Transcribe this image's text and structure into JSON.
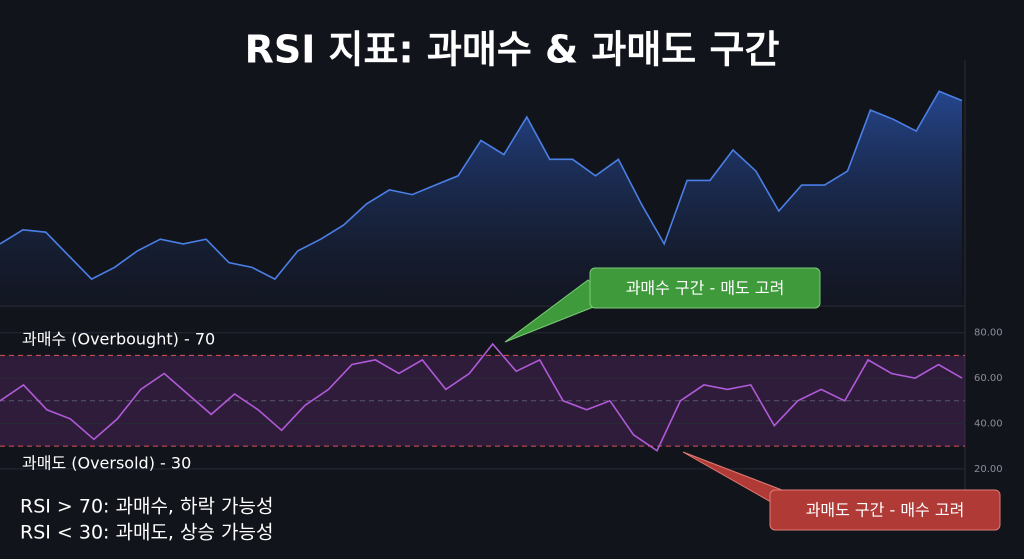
{
  "title": "RSI 지표: 과매수 & 과매도 구간",
  "notes": [
    "RSI > 70: 과매수, 하락 가능성",
    "RSI < 30: 과매도, 상승 가능성"
  ],
  "chart_data": [
    {
      "type": "area",
      "color": "#4a7fe6",
      "values": [
        26,
        32,
        31,
        21,
        11,
        16,
        23,
        28,
        26,
        28,
        18,
        16,
        11,
        23,
        28,
        34,
        43,
        49,
        47,
        51,
        55,
        70,
        64,
        80,
        62,
        62,
        55,
        62,
        43,
        26,
        53,
        53,
        66,
        57,
        40,
        51,
        51,
        57,
        83,
        79,
        74,
        91,
        87
      ],
      "ylim": [
        0,
        100
      ]
    },
    {
      "type": "line",
      "color": "#b05ad8",
      "values": [
        50,
        57,
        46,
        42,
        33,
        42,
        55,
        62,
        53,
        44,
        53,
        46,
        37,
        48,
        55,
        66,
        68,
        62,
        68,
        55,
        62,
        75,
        63,
        68,
        50,
        46,
        50,
        35,
        28,
        50,
        57,
        55,
        57,
        39,
        50,
        55,
        50,
        68,
        62,
        60,
        66,
        60
      ],
      "ylim": [
        12,
        90
      ],
      "yticks": [
        {
          "value": 20,
          "label": "20.00"
        },
        {
          "value": 40,
          "label": "40.00"
        },
        {
          "value": 60,
          "label": "60.00"
        },
        {
          "value": 80,
          "label": "80.00"
        }
      ],
      "grid": true,
      "levels": {
        "overbought": 70,
        "midline": 50,
        "oversold": 30
      },
      "level_labels": {
        "overbought": "과매수 (Overbought) - 70",
        "oversold": "과매도 (Oversold) - 30"
      },
      "callouts": {
        "overbought": "과매수 구간 - 매도 고려",
        "oversold": "과매도 구간 - 매수 고려"
      }
    }
  ]
}
